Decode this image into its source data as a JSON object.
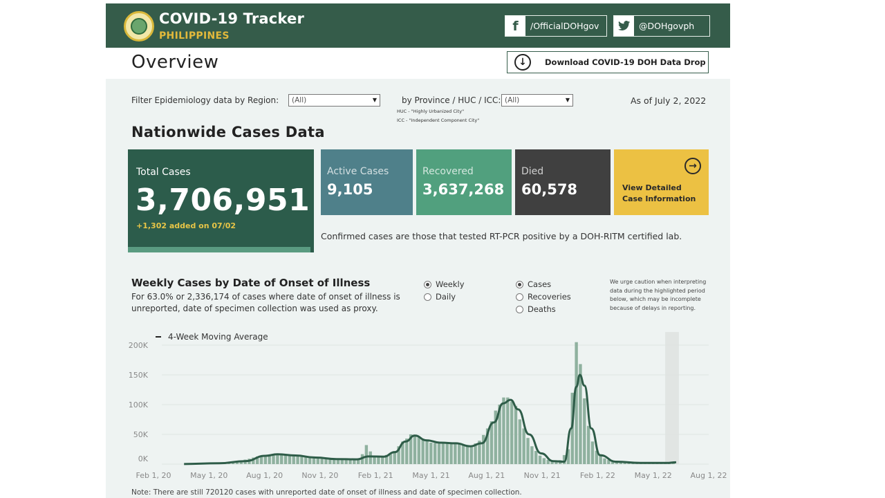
{
  "header": {
    "title": "COVID-19 Tracker",
    "subtitle": "PHILIPPINES",
    "facebook": "/OfficialDOHgov",
    "twitter": "@DOHgovph"
  },
  "overview_title": "Overview",
  "download_label": "Download COVID-19 DOH Data Drop",
  "filters": {
    "region_label": "Filter Epidemiology data by Region:",
    "region_value": "(All)",
    "province_label": "by Province / HUC / ICC:",
    "province_value": "(All)",
    "huc_note": "HUC - \"Highly Urbanized City\"",
    "icc_note": "ICC - \"Independent Component City\"",
    "as_of": "As of July 2, 2022"
  },
  "section_title": "Nationwide Cases Data",
  "cards": {
    "total_label": "Total Cases",
    "total_value": "3,706,951",
    "total_added": "+1,302 added on 07/02",
    "active_label": "Active Cases",
    "active_value": "9,105",
    "recovered_label": "Recovered",
    "recovered_value": "3,637,268",
    "died_label": "Died",
    "died_value": "60,578",
    "view_label": "View Detailed Case Information"
  },
  "confirmed_note": "Confirmed cases are those that tested RT-PCR positive by a DOH-RITM certified lab.",
  "chart_section": {
    "title": "Weekly Cases by Date of Onset of Illness",
    "description": "For 63.0% or 2,336,174 of cases where date of onset of illness is unreported, date of specimen collection was used as proxy.",
    "period_options": [
      "Weekly",
      "Daily"
    ],
    "period_selected": "Weekly",
    "measure_options": [
      "Cases",
      "Recoveries",
      "Deaths"
    ],
    "measure_selected": "Cases",
    "caution": "We urge caution when interpreting data during the highlighted period below, which may be incomplete because of delays in reporting.",
    "legend_label": "4-Week Moving Average",
    "footnote": "Note: There are still 720120 cases with unreported date of onset of illness and date of specimen collection."
  },
  "colors": {
    "header_bg": "#355c4a",
    "accent_gold": "#e3b93b",
    "bar": "#8fb19f",
    "line": "#2e5c48",
    "highlight": "#e1e5e3"
  },
  "chart_data": {
    "type": "bar",
    "title": "Weekly Cases by Date of Onset of Illness",
    "x_ticks": [
      "Feb 1, 20",
      "May 1, 20",
      "Aug 1, 20",
      "Nov 1, 20",
      "Feb 1, 21",
      "May 1, 21",
      "Aug 1, 21",
      "Nov 1, 21",
      "Feb 1, 22",
      "May 1, 22",
      "Aug 1, 22"
    ],
    "y_ticks": [
      "0K",
      "50K",
      "100K",
      "150K",
      "200K"
    ],
    "ylim": [
      0,
      200000
    ],
    "x_start": "2020-02-01",
    "x_end": "2022-08-01",
    "highlight_period": [
      "2022-06-13",
      "2022-07-02"
    ],
    "series": [
      {
        "name": "Cases",
        "kind": "bar",
        "points": [
          [
            "2020-03-16",
            600
          ],
          [
            "2020-04-01",
            1200
          ],
          [
            "2020-04-20",
            1800
          ],
          [
            "2020-05-10",
            2500
          ],
          [
            "2020-06-01",
            5000
          ],
          [
            "2020-06-20",
            8500
          ],
          [
            "2020-07-10",
            14000
          ],
          [
            "2020-08-01",
            17000
          ],
          [
            "2020-08-20",
            15500
          ],
          [
            "2020-09-10",
            14000
          ],
          [
            "2020-10-01",
            12000
          ],
          [
            "2020-10-20",
            10500
          ],
          [
            "2020-11-10",
            8000
          ],
          [
            "2020-12-01",
            7500
          ],
          [
            "2020-12-20",
            8000
          ],
          [
            "2021-01-01",
            9000
          ],
          [
            "2021-01-10",
            32000
          ],
          [
            "2021-01-25",
            12000
          ],
          [
            "2021-02-10",
            13000
          ],
          [
            "2021-03-01",
            22000
          ],
          [
            "2021-03-15",
            38000
          ],
          [
            "2021-04-01",
            50000
          ],
          [
            "2021-04-15",
            45000
          ],
          [
            "2021-05-01",
            36000
          ],
          [
            "2021-05-20",
            35000
          ],
          [
            "2021-06-10",
            36000
          ],
          [
            "2021-06-25",
            32000
          ],
          [
            "2021-07-10",
            30000
          ],
          [
            "2021-07-25",
            38000
          ],
          [
            "2021-08-10",
            60000
          ],
          [
            "2021-08-25",
            90000
          ],
          [
            "2021-09-05",
            112000
          ],
          [
            "2021-09-15",
            112000
          ],
          [
            "2021-09-25",
            98000
          ],
          [
            "2021-10-10",
            60000
          ],
          [
            "2021-10-25",
            30000
          ],
          [
            "2021-11-10",
            12000
          ],
          [
            "2021-11-25",
            6000
          ],
          [
            "2021-12-10",
            3000
          ],
          [
            "2021-12-28",
            25000
          ],
          [
            "2022-01-04",
            120000
          ],
          [
            "2022-01-11",
            205000
          ],
          [
            "2022-01-18",
            162000
          ],
          [
            "2022-01-25",
            102000
          ],
          [
            "2022-02-01",
            58000
          ],
          [
            "2022-02-10",
            28000
          ],
          [
            "2022-02-20",
            14000
          ],
          [
            "2022-03-05",
            7000
          ],
          [
            "2022-03-25",
            4000
          ],
          [
            "2022-04-15",
            2500
          ],
          [
            "2022-05-10",
            2000
          ],
          [
            "2022-06-01",
            2000
          ],
          [
            "2022-06-20",
            3000
          ],
          [
            "2022-07-02",
            4000
          ]
        ]
      },
      {
        "name": "4-Week Moving Average",
        "kind": "line",
        "points": [
          [
            "2020-03-01",
            200
          ],
          [
            "2020-05-01",
            1500
          ],
          [
            "2020-06-15",
            5000
          ],
          [
            "2020-07-20",
            14000
          ],
          [
            "2020-08-10",
            16500
          ],
          [
            "2020-09-10",
            14500
          ],
          [
            "2020-10-15",
            11000
          ],
          [
            "2020-11-20",
            8500
          ],
          [
            "2020-12-25",
            8000
          ],
          [
            "2021-01-15",
            13000
          ],
          [
            "2021-02-10",
            12500
          ],
          [
            "2021-03-01",
            20000
          ],
          [
            "2021-03-20",
            38000
          ],
          [
            "2021-04-05",
            48000
          ],
          [
            "2021-04-25",
            40000
          ],
          [
            "2021-05-20",
            36000
          ],
          [
            "2021-06-15",
            35000
          ],
          [
            "2021-07-10",
            30000
          ],
          [
            "2021-07-30",
            35000
          ],
          [
            "2021-08-20",
            70000
          ],
          [
            "2021-09-05",
            102000
          ],
          [
            "2021-09-18",
            108000
          ],
          [
            "2021-10-01",
            92000
          ],
          [
            "2021-10-20",
            50000
          ],
          [
            "2021-11-10",
            18000
          ],
          [
            "2021-12-01",
            5000
          ],
          [
            "2021-12-20",
            4000
          ],
          [
            "2022-01-01",
            60000
          ],
          [
            "2022-01-10",
            130000
          ],
          [
            "2022-01-16",
            150000
          ],
          [
            "2022-01-24",
            132000
          ],
          [
            "2022-02-05",
            60000
          ],
          [
            "2022-02-20",
            15000
          ],
          [
            "2022-03-20",
            4000
          ],
          [
            "2022-05-01",
            2000
          ],
          [
            "2022-06-15",
            2000
          ],
          [
            "2022-07-02",
            3000
          ]
        ]
      }
    ]
  }
}
